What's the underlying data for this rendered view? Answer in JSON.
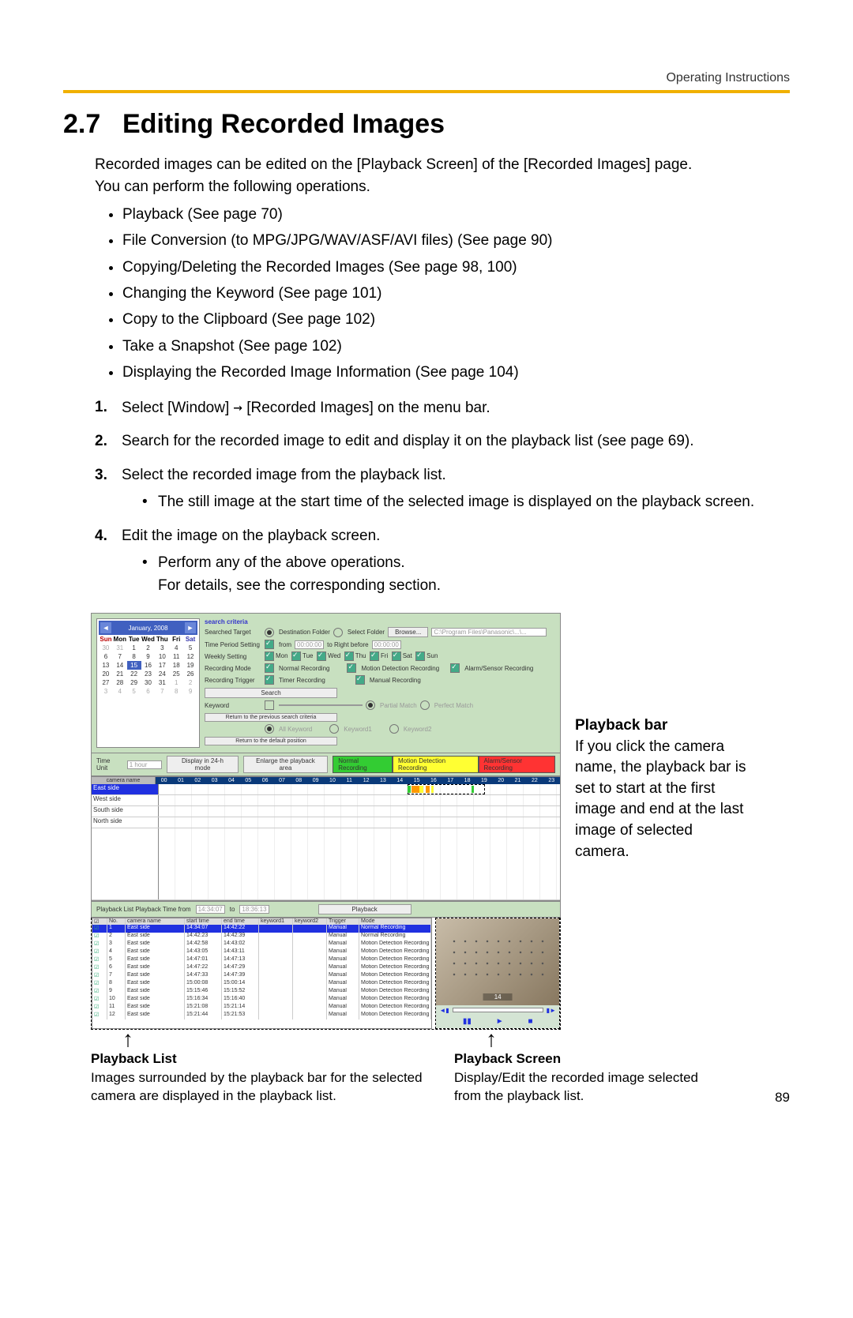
{
  "header": {
    "label": "Operating Instructions"
  },
  "heading": {
    "number": "2.7",
    "title": "Editing Recorded Images"
  },
  "intro1": "Recorded images can be edited on the [Playback Screen] of the [Recorded Images] page.",
  "intro2": "You can perform the following operations.",
  "bullets": [
    "Playback (See page 70)",
    "File Conversion (to MPG/JPG/WAV/ASF/AVI files) (See page 90)",
    "Copying/Deleting the Recorded Images (See page 98, 100)",
    "Changing the Keyword (See page 101)",
    "Copy to the Clipboard (See page 102)",
    "Take a Snapshot (See page 102)",
    "Displaying the Recorded Image Information (See page 104)"
  ],
  "steps": [
    {
      "n": "1.",
      "t": "Select [Window] → [Recorded Images] on the menu bar."
    },
    {
      "n": "2.",
      "t": "Search for the recorded image to edit and display it on the playback list (see page 69)."
    },
    {
      "n": "3.",
      "t": "Select the recorded image from the playback list.",
      "sub": "The still image at the start time of the selected image is displayed on the playback screen."
    },
    {
      "n": "4.",
      "t": "Edit the image on the playback screen.",
      "sub": "Perform any of the above operations.\nFor details, see the corresponding section."
    }
  ],
  "calendar": {
    "title": "January, 2008",
    "dayHeaders": [
      "Sun",
      "Mon",
      "Tue",
      "Wed",
      "Thu",
      "Fri",
      "Sat"
    ],
    "prevGray": [
      "30",
      "31"
    ],
    "days": [
      "1",
      "2",
      "3",
      "4",
      "5",
      "6",
      "7",
      "8",
      "9",
      "10",
      "11",
      "12",
      "13",
      "14",
      "15",
      "16",
      "17",
      "18",
      "19",
      "20",
      "21",
      "22",
      "23",
      "24",
      "25",
      "26",
      "27",
      "28",
      "29",
      "30",
      "31"
    ],
    "nextGray": [
      "1",
      "2",
      "3",
      "4",
      "5",
      "6",
      "7",
      "8",
      "9"
    ],
    "current": "15"
  },
  "criteria": {
    "title": "search criteria",
    "rows": {
      "target_lbl": "Searched Target",
      "target_r1": "Destination Folder",
      "target_r2": "Select Folder",
      "browse": "Browse...",
      "path": "C:\\Program Files\\Panasonic\\...\\...",
      "period_lbl": "Time Period Setting",
      "period_from": "from",
      "period_to": "to Right before",
      "t1": "00:00:00",
      "t2": "00:00:00",
      "weekly_lbl": "Weekly Setting",
      "days": [
        "Mon",
        "Tue",
        "Wed",
        "Thu",
        "Fri",
        "Sat",
        "Sun"
      ],
      "mode_lbl": "Recording Mode",
      "mode1": "Normal Recording",
      "mode2": "Motion Detection Recording",
      "mode3": "Alarm/Sensor Recording",
      "trig_lbl": "Recording Trigger",
      "trig1": "Timer Recording",
      "trig2": "Manual Recording",
      "search": "Search",
      "kw_lbl": "Keyword",
      "pm": "Partial Match",
      "pfm": "Perfect Match",
      "rprev": "Return to the previous search criteria",
      "kall": "All Keyword",
      "k1": "Keyword1",
      "k2": "Keyword2",
      "rdef": "Return to the default position"
    }
  },
  "toolbar": {
    "tu": "Time Unit",
    "tuv": "1 hour",
    "d24": "Display in 24-h mode",
    "enl": "Enlarge the playback area",
    "lg_n": "Normal Recording",
    "lg_m": "Motion Detection Recording",
    "lg_a": "Alarm/Sensor Recording"
  },
  "timeline": {
    "cn": "camera name",
    "hours": [
      "00",
      "01",
      "02",
      "03",
      "04",
      "05",
      "06",
      "07",
      "08",
      "09",
      "10",
      "11",
      "12",
      "13",
      "14",
      "15",
      "16",
      "17",
      "18",
      "19",
      "20",
      "21",
      "22",
      "23"
    ],
    "rows": [
      "East side",
      "West side",
      "South side",
      "North side"
    ]
  },
  "midrow": {
    "lbl": "Playback List   Playback Time   from",
    "t1": "14:34:07",
    "to": "to",
    "t2": "18:36:13",
    "pb": "Playback"
  },
  "table": {
    "headers": {
      "no": "No.",
      "cam": "camera name",
      "st": "start time",
      "et": "end time",
      "k1": "keyword1",
      "k2": "keyword2",
      "trg": "Trigger",
      "mode": "Mode"
    },
    "rows": [
      {
        "no": "1",
        "cam": "East side",
        "st": "14:34:07",
        "et": "14:42:22",
        "trg": "Manual",
        "mode": "Normal Recording",
        "sel": true
      },
      {
        "no": "2",
        "cam": "East side",
        "st": "14:42:23",
        "et": "14:42:39",
        "trg": "Manual",
        "mode": "Normal Recording"
      },
      {
        "no": "3",
        "cam": "East side",
        "st": "14:42:58",
        "et": "14:43:02",
        "trg": "Manual",
        "mode": "Motion Detection Recording"
      },
      {
        "no": "4",
        "cam": "East side",
        "st": "14:43:05",
        "et": "14:43:11",
        "trg": "Manual",
        "mode": "Motion Detection Recording"
      },
      {
        "no": "5",
        "cam": "East side",
        "st": "14:47:01",
        "et": "14:47:13",
        "trg": "Manual",
        "mode": "Motion Detection Recording"
      },
      {
        "no": "6",
        "cam": "East side",
        "st": "14:47:22",
        "et": "14:47:29",
        "trg": "Manual",
        "mode": "Motion Detection Recording"
      },
      {
        "no": "7",
        "cam": "East side",
        "st": "14:47:33",
        "et": "14:47:39",
        "trg": "Manual",
        "mode": "Motion Detection Recording"
      },
      {
        "no": "8",
        "cam": "East side",
        "st": "15:00:08",
        "et": "15:00:14",
        "trg": "Manual",
        "mode": "Motion Detection Recording"
      },
      {
        "no": "9",
        "cam": "East side",
        "st": "15:15:46",
        "et": "15:15:52",
        "trg": "Manual",
        "mode": "Motion Detection Recording"
      },
      {
        "no": "10",
        "cam": "East side",
        "st": "15:16:34",
        "et": "15:16:40",
        "trg": "Manual",
        "mode": "Motion Detection Recording"
      },
      {
        "no": "11",
        "cam": "East side",
        "st": "15:21:08",
        "et": "15:21:14",
        "trg": "Manual",
        "mode": "Motion Detection Recording"
      },
      {
        "no": "12",
        "cam": "East side",
        "st": "15:21:44",
        "et": "15:21:53",
        "trg": "Manual",
        "mode": "Motion Detection Recording"
      }
    ]
  },
  "preview": {
    "label": "14"
  },
  "side": {
    "title": "Playback bar",
    "body": "If you click the camera name, the playback bar is set to start at the first image and end at the last image of selected camera."
  },
  "callouts": {
    "c1_title": "Playback List",
    "c1_body": "Images surrounded by the playback bar for the selected camera are displayed in the playback list.",
    "c2_title": "Playback Screen",
    "c2_body": "Display/Edit the recorded image selected from the playback list."
  },
  "pageNumber": "89"
}
